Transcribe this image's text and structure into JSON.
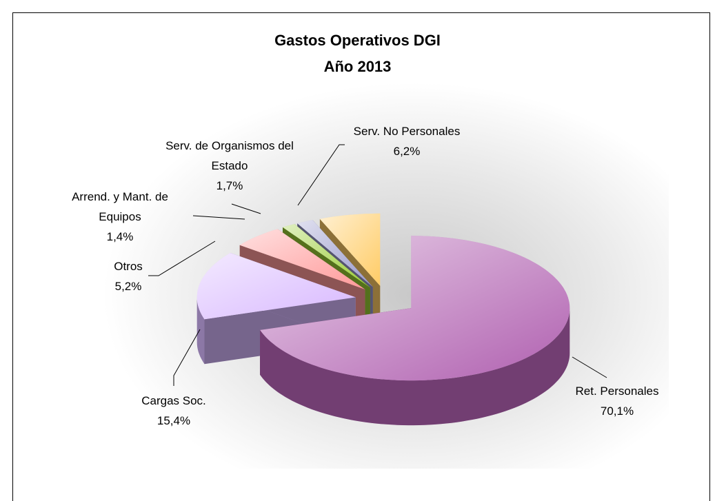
{
  "chart_data": {
    "type": "pie",
    "title": "Gastos Operativos DGI",
    "subtitle": "Año 2013",
    "categories": [
      "Ret. Personales",
      "Cargas Soc.",
      "Otros",
      "Arrend. y Mant. de Equipos",
      "Serv. de Organismos del Estado",
      "Serv. No Personales"
    ],
    "values": [
      70.1,
      15.4,
      5.2,
      1.4,
      1.7,
      6.2
    ],
    "value_labels": [
      "70,1%",
      "15,4%",
      "5,2%",
      "1,4%",
      "1,7%",
      "6,2%"
    ],
    "colors": [
      "#b060b0",
      "#d8b8ff",
      "#ff9999",
      "#99cc33",
      "#9999cc",
      "#ffcc66"
    ]
  }
}
